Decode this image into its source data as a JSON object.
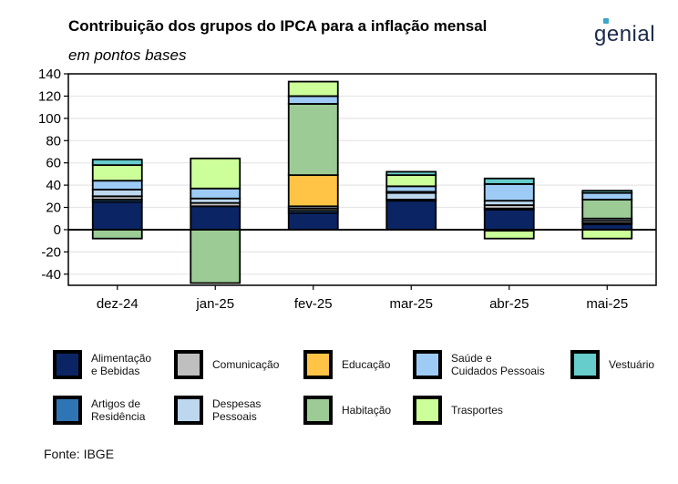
{
  "header": {
    "title": "Contribuição dos grupos do IPCA para a inflação mensal",
    "subtitle": "em pontos bases",
    "logo_text": "genial"
  },
  "footer": {
    "source": "Fonte: IBGE"
  },
  "chart_data": {
    "type": "bar",
    "stacked": true,
    "categories": [
      "dez-24",
      "jan-25",
      "fev-25",
      "mar-25",
      "abr-25",
      "mai-25"
    ],
    "ylim": [
      -50,
      140
    ],
    "yticks": [
      140,
      120,
      100,
      80,
      60,
      40,
      20,
      0,
      -20,
      -40
    ],
    "grid": true,
    "legend_position": "bottom",
    "series": [
      {
        "name": "Alimentação\ne Bebidas",
        "color": "#0b2463",
        "values": [
          25,
          21,
          15,
          26,
          18,
          5
        ]
      },
      {
        "name": "Artigos de\nResidência",
        "color": "#2f74b5",
        "values": [
          2,
          0,
          2,
          1,
          1,
          1
        ]
      },
      {
        "name": "Comunicação",
        "color": "#bfbfbf",
        "values": [
          3,
          3,
          2,
          0,
          3,
          2
        ]
      },
      {
        "name": "Despesas\nPessoais",
        "color": "#bdd7ee",
        "values": [
          6,
          4,
          2,
          6,
          4,
          2
        ]
      },
      {
        "name": "Educação",
        "color": "#ffc445",
        "values": [
          0,
          0,
          28,
          1,
          0,
          0
        ]
      },
      {
        "name": "Habitação",
        "color": "#9ccb96",
        "values": [
          -8,
          -48,
          64,
          0,
          -1,
          17
        ]
      },
      {
        "name": "Saúde e\nCuidados Pessoais",
        "color": "#9dcbf5",
        "values": [
          8,
          9,
          7,
          5,
          15,
          6
        ]
      },
      {
        "name": "Trasportes",
        "color": "#ccff99",
        "values": [
          14,
          27,
          13,
          10,
          -7,
          -8
        ]
      },
      {
        "name": "Vestuário",
        "color": "#66cccc",
        "values": [
          5,
          0,
          0,
          3,
          5,
          2
        ]
      }
    ]
  },
  "legend_order": [
    {
      "series": 0,
      "col": 0,
      "row": 0
    },
    {
      "series": 2,
      "col": 1,
      "row": 0
    },
    {
      "series": 4,
      "col": 2,
      "row": 0
    },
    {
      "series": 6,
      "col": 3,
      "row": 0
    },
    {
      "series": 8,
      "col": 4,
      "row": 0
    },
    {
      "series": 1,
      "col": 0,
      "row": 1
    },
    {
      "series": 3,
      "col": 1,
      "row": 1
    },
    {
      "series": 5,
      "col": 2,
      "row": 1
    },
    {
      "series": 7,
      "col": 3,
      "row": 1
    }
  ]
}
